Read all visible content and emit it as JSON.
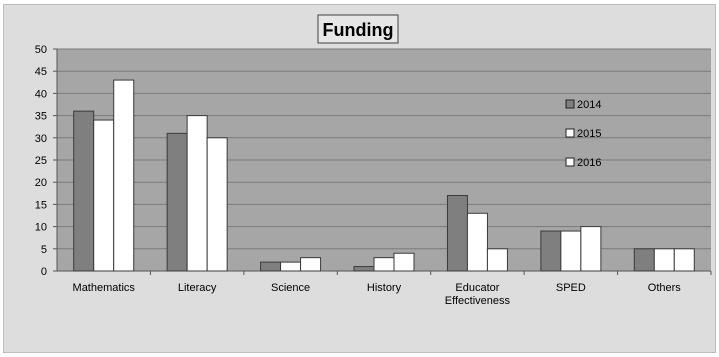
{
  "chart_data": {
    "type": "bar",
    "title": "Funding",
    "categories": [
      "Mathematics",
      "Literacy",
      "Science",
      "History",
      "Educator Effectiveness",
      "SPED",
      "Others"
    ],
    "series": [
      {
        "name": "2014",
        "values": [
          36,
          31,
          2,
          1,
          17,
          9,
          5
        ],
        "color": "#7f7f7f"
      },
      {
        "name": "2015",
        "values": [
          34,
          35,
          2,
          3,
          13,
          9,
          5
        ],
        "color": "#ffffff"
      },
      {
        "name": "2016",
        "values": [
          43,
          30,
          3,
          4,
          5,
          10,
          5
        ],
        "color": "#ffffff"
      }
    ],
    "ylim": [
      0,
      50
    ],
    "yticks": [
      0,
      5,
      10,
      15,
      20,
      25,
      30,
      35,
      40,
      45,
      50
    ],
    "grid": true,
    "legend_position": "right-inside",
    "plot_background": "#a6a6a6",
    "chart_background": "#dddddd"
  }
}
